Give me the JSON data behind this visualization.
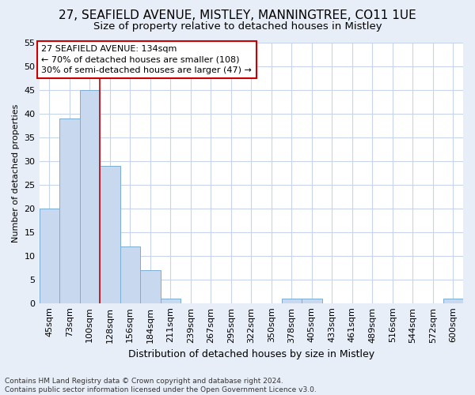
{
  "title": "27, SEAFIELD AVENUE, MISTLEY, MANNINGTREE, CO11 1UE",
  "subtitle": "Size of property relative to detached houses in Mistley",
  "xlabel": "Distribution of detached houses by size in Mistley",
  "ylabel": "Number of detached properties",
  "bin_labels": [
    "45sqm",
    "73sqm",
    "100sqm",
    "128sqm",
    "156sqm",
    "184sqm",
    "211sqm",
    "239sqm",
    "267sqm",
    "295sqm",
    "322sqm",
    "350sqm",
    "378sqm",
    "405sqm",
    "433sqm",
    "461sqm",
    "489sqm",
    "516sqm",
    "544sqm",
    "572sqm",
    "600sqm"
  ],
  "bar_heights": [
    20,
    39,
    45,
    29,
    12,
    7,
    1,
    0,
    0,
    0,
    0,
    0,
    1,
    1,
    0,
    0,
    0,
    0,
    0,
    0,
    1
  ],
  "bar_color": "#c8d8ee",
  "bar_edgecolor": "#7aaed4",
  "reference_line_x": 3,
  "reference_line_color": "#cc0000",
  "annotation_text": "27 SEAFIELD AVENUE: 134sqm\n← 70% of detached houses are smaller (108)\n30% of semi-detached houses are larger (47) →",
  "annotation_box_facecolor": "#ffffff",
  "annotation_box_edgecolor": "#cc0000",
  "footer_text": "Contains HM Land Registry data © Crown copyright and database right 2024.\nContains public sector information licensed under the Open Government Licence v3.0.",
  "ylim": [
    0,
    55
  ],
  "yticks": [
    0,
    5,
    10,
    15,
    20,
    25,
    30,
    35,
    40,
    45,
    50,
    55
  ],
  "figure_background_color": "#e8eef8",
  "axes_background_color": "#ffffff",
  "grid_color": "#c8d4e8",
  "title_fontsize": 11,
  "subtitle_fontsize": 9.5,
  "xlabel_fontsize": 9,
  "ylabel_fontsize": 8,
  "tick_fontsize": 8,
  "annotation_fontsize": 8,
  "footer_fontsize": 6.5
}
